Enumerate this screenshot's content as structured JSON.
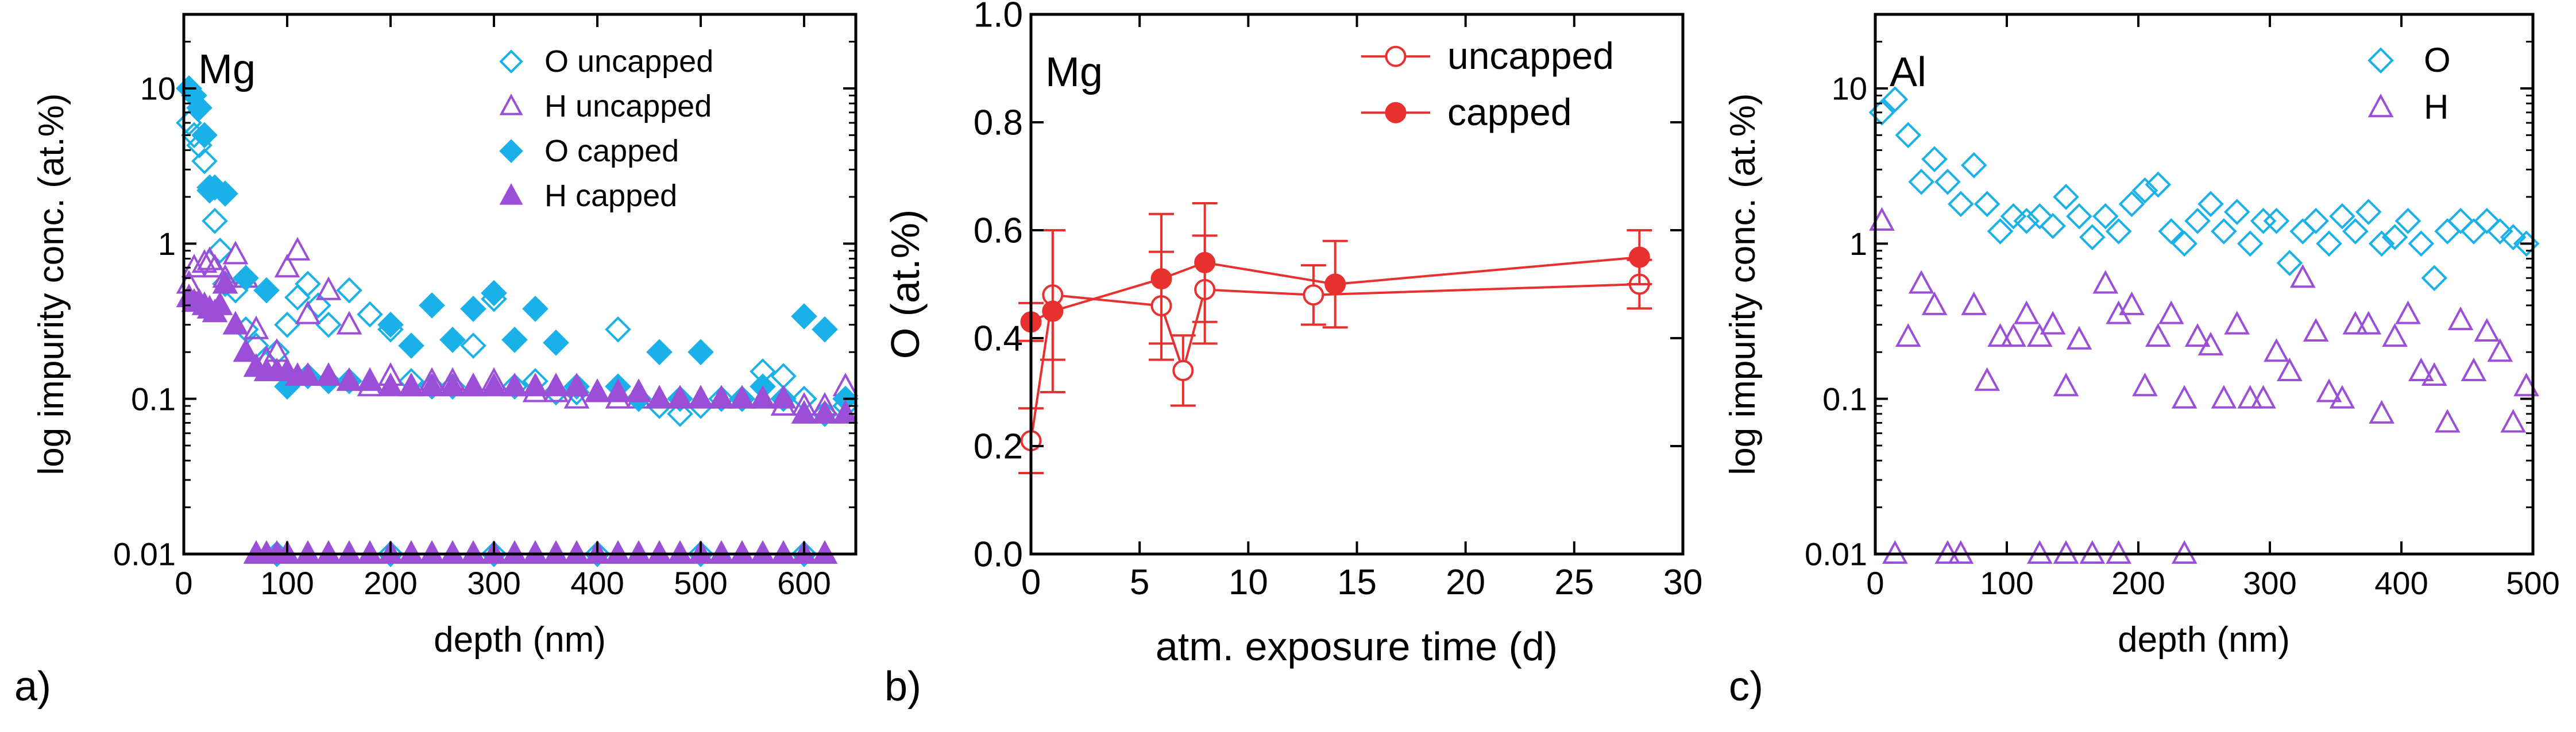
{
  "panel_labels": [
    "a)",
    "b)",
    "c)"
  ],
  "colors": {
    "oxygen": "#1AB0E8",
    "hydrogen": "#9B4FD6",
    "capped_line": "#E8302E",
    "axis": "#000000"
  },
  "chart_data": [
    {
      "type": "scatter",
      "panel": "a)",
      "annotation": "Mg",
      "xlabel": "depth (nm)",
      "ylabel": "log impurity conc. (at.%)",
      "xscale": "linear",
      "yscale": "log",
      "xlim": [
        0,
        650
      ],
      "ylim": [
        0.01,
        30
      ],
      "xticks": [
        "0",
        "100",
        "200",
        "300",
        "400",
        "500",
        "600"
      ],
      "xtick_values": [
        0,
        100,
        200,
        300,
        400,
        500,
        600
      ],
      "yticks": [
        "0.01",
        "0.1",
        "1",
        "10"
      ],
      "ytick_values": [
        0.01,
        0.1,
        1,
        10
      ],
      "legend_position": "top-right",
      "series": [
        {
          "name": "O uncapped",
          "marker": "diamond",
          "filled": false,
          "color": "#1AB0E8",
          "x": [
            5,
            10,
            15,
            20,
            25,
            30,
            35,
            40,
            50,
            60,
            70,
            80,
            90,
            100,
            110,
            120,
            130,
            140,
            160,
            180,
            200,
            220,
            240,
            260,
            280,
            300,
            320,
            340,
            360,
            380,
            420,
            440,
            460,
            480,
            500,
            520,
            540,
            560,
            580,
            600,
            620,
            640,
            90,
            200,
            300,
            400,
            500,
            600
          ],
          "y": [
            6,
            5,
            4.3,
            3.4,
            2.3,
            1.4,
            0.9,
            0.55,
            0.5,
            0.28,
            0.22,
            0.17,
            0.2,
            0.3,
            0.45,
            0.55,
            0.4,
            0.3,
            0.5,
            0.35,
            0.28,
            0.13,
            0.12,
            0.12,
            0.22,
            0.44,
            0.12,
            0.13,
            0.11,
            0.11,
            0.28,
            0.1,
            0.09,
            0.08,
            0.09,
            0.1,
            0.1,
            0.15,
            0.14,
            0.1,
            0.08,
            0.09,
            0.01,
            0.01,
            0.01,
            0.01,
            0.01,
            0.01
          ]
        },
        {
          "name": "H uncapped",
          "marker": "triangle",
          "filled": false,
          "color": "#9B4FD6",
          "x": [
            5,
            10,
            20,
            25,
            30,
            40,
            50,
            60,
            70,
            80,
            90,
            100,
            110,
            120,
            140,
            160,
            180,
            200,
            220,
            240,
            260,
            280,
            300,
            320,
            340,
            360,
            380,
            400,
            420,
            440,
            460,
            480,
            500,
            520,
            540,
            560,
            580,
            600,
            620,
            640
          ],
          "y": [
            0.55,
            0.7,
            0.75,
            0.78,
            0.7,
            0.6,
            0.85,
            0.6,
            0.28,
            0.18,
            0.2,
            0.7,
            0.9,
            0.35,
            0.5,
            0.3,
            0.12,
            0.14,
            0.12,
            0.13,
            0.13,
            0.12,
            0.13,
            0.12,
            0.11,
            0.11,
            0.1,
            0.11,
            0.1,
            0.1,
            0.1,
            0.1,
            0.1,
            0.1,
            0.1,
            0.1,
            0.09,
            0.09,
            0.09,
            0.12
          ]
        },
        {
          "name": "O capped",
          "marker": "diamond",
          "filled": true,
          "color": "#1AB0E8",
          "x": [
            5,
            10,
            15,
            20,
            25,
            30,
            40,
            60,
            80,
            100,
            120,
            140,
            160,
            200,
            220,
            240,
            260,
            280,
            300,
            320,
            340,
            360,
            380,
            420,
            440,
            460,
            480,
            500,
            540,
            560,
            580,
            600,
            620,
            640
          ],
          "y": [
            10,
            9,
            7.5,
            5,
            2.2,
            2.3,
            2.1,
            0.6,
            0.5,
            0.12,
            0.14,
            0.13,
            0.13,
            0.3,
            0.22,
            0.4,
            0.24,
            0.38,
            0.48,
            0.24,
            0.38,
            0.23,
            0.12,
            0.12,
            0.1,
            0.2,
            0.1,
            0.2,
            0.1,
            0.12,
            0.1,
            0.34,
            0.28,
            0.1
          ]
        },
        {
          "name": "H capped",
          "marker": "triangle",
          "filled": true,
          "color": "#9B4FD6",
          "x": [
            5,
            10,
            15,
            20,
            25,
            30,
            35,
            40,
            50,
            60,
            70,
            80,
            90,
            100,
            110,
            120,
            140,
            160,
            180,
            200,
            220,
            240,
            260,
            280,
            300,
            320,
            340,
            360,
            380,
            400,
            420,
            440,
            460,
            480,
            500,
            520,
            540,
            560,
            580,
            600,
            620,
            640,
            70,
            80,
            90,
            100,
            120,
            140,
            160,
            180,
            200,
            220,
            240,
            260,
            280,
            300,
            320,
            340,
            360,
            380,
            400,
            420,
            440,
            460,
            480,
            500,
            520,
            540,
            560,
            580,
            600,
            620
          ],
          "y": [
            0.45,
            0.42,
            0.42,
            0.4,
            0.38,
            0.36,
            0.4,
            0.55,
            0.3,
            0.2,
            0.16,
            0.15,
            0.15,
            0.15,
            0.14,
            0.14,
            0.14,
            0.13,
            0.13,
            0.12,
            0.12,
            0.12,
            0.12,
            0.12,
            0.12,
            0.12,
            0.12,
            0.12,
            0.12,
            0.11,
            0.11,
            0.11,
            0.1,
            0.1,
            0.1,
            0.1,
            0.1,
            0.1,
            0.1,
            0.08,
            0.08,
            0.08,
            0.01,
            0.01,
            0.01,
            0.01,
            0.01,
            0.01,
            0.01,
            0.01,
            0.01,
            0.01,
            0.01,
            0.01,
            0.01,
            0.01,
            0.01,
            0.01,
            0.01,
            0.01,
            0.01,
            0.01,
            0.01,
            0.01,
            0.01,
            0.01,
            0.01,
            0.01,
            0.01,
            0.01,
            0.01,
            0.01
          ]
        }
      ]
    },
    {
      "type": "line",
      "panel": "b)",
      "annotation": "Mg",
      "xlabel": "atm. exposure time (d)",
      "ylabel": "O (at.%)",
      "xlim": [
        0,
        30
      ],
      "ylim": [
        0.0,
        1.0
      ],
      "xticks": [
        "0",
        "5",
        "10",
        "15",
        "20",
        "25",
        "30"
      ],
      "xtick_values": [
        0,
        5,
        10,
        15,
        20,
        25,
        30
      ],
      "yticks": [
        "0.0",
        "0.2",
        "0.4",
        "0.6",
        "0.8",
        "1.0"
      ],
      "ytick_values": [
        0,
        0.2,
        0.4,
        0.6,
        0.8,
        1.0
      ],
      "legend_position": "top-right",
      "series": [
        {
          "name": "uncapped",
          "marker": "circle",
          "filled": false,
          "color": "#E8302E",
          "x": [
            0,
            1,
            6,
            7,
            8,
            13,
            28
          ],
          "y": [
            0.21,
            0.48,
            0.46,
            0.34,
            0.49,
            0.48,
            0.5
          ],
          "err": [
            0.06,
            0.12,
            0.1,
            0.065,
            0.1,
            0.055,
            0.045
          ]
        },
        {
          "name": "capped",
          "marker": "circle",
          "filled": true,
          "color": "#E8302E",
          "x": [
            0,
            1,
            6,
            8,
            14,
            28
          ],
          "y": [
            0.43,
            0.45,
            0.51,
            0.54,
            0.5,
            0.55
          ],
          "err": [
            0.035,
            0.15,
            0.12,
            0.11,
            0.08,
            0.05
          ]
        }
      ]
    },
    {
      "type": "scatter",
      "panel": "c)",
      "annotation": "Al",
      "xlabel": "depth (nm)",
      "ylabel": "log impurity conc. (at.%)",
      "xscale": "linear",
      "yscale": "log",
      "xlim": [
        0,
        500
      ],
      "ylim": [
        0.01,
        30
      ],
      "xticks": [
        "0",
        "100",
        "200",
        "300",
        "400",
        "500"
      ],
      "xtick_values": [
        0,
        100,
        200,
        300,
        400,
        500
      ],
      "yticks": [
        "0.01",
        "0.1",
        "1",
        "10"
      ],
      "ytick_values": [
        0.01,
        0.1,
        1,
        10
      ],
      "legend_position": "top-right",
      "series": [
        {
          "name": "O",
          "marker": "diamond",
          "filled": false,
          "color": "#1AB0E8",
          "x": [
            5,
            15,
            25,
            35,
            45,
            55,
            65,
            75,
            85,
            95,
            105,
            115,
            125,
            135,
            145,
            155,
            165,
            175,
            185,
            195,
            205,
            215,
            225,
            235,
            245,
            255,
            265,
            275,
            285,
            295,
            305,
            315,
            325,
            335,
            345,
            355,
            365,
            375,
            385,
            395,
            405,
            415,
            425,
            435,
            445,
            455,
            465,
            475,
            485,
            495
          ],
          "y": [
            7,
            8.5,
            5,
            2.5,
            3.5,
            2.5,
            1.8,
            3.2,
            1.8,
            1.2,
            1.5,
            1.4,
            1.5,
            1.3,
            2,
            1.5,
            1.1,
            1.5,
            1.2,
            1.8,
            2.2,
            2.4,
            1.2,
            1,
            1.4,
            1.8,
            1.2,
            1.6,
            1,
            1.4,
            1.4,
            0.75,
            1.2,
            1.4,
            1,
            1.5,
            1.2,
            1.6,
            1,
            1.1,
            1.4,
            1,
            0.6,
            1.2,
            1.4,
            1.2,
            1.4,
            1.2,
            1.1,
            1
          ]
        },
        {
          "name": "H",
          "marker": "triangle",
          "filled": false,
          "color": "#9B4FD6",
          "x": [
            5,
            25,
            35,
            45,
            75,
            85,
            95,
            105,
            115,
            125,
            135,
            145,
            155,
            175,
            185,
            195,
            205,
            215,
            225,
            235,
            245,
            255,
            265,
            275,
            285,
            295,
            305,
            315,
            325,
            335,
            345,
            355,
            365,
            375,
            385,
            395,
            405,
            415,
            425,
            435,
            445,
            455,
            465,
            475,
            485,
            495,
            15,
            55,
            65,
            125,
            145,
            165,
            185,
            235
          ],
          "y": [
            1.4,
            0.25,
            0.55,
            0.4,
            0.4,
            0.13,
            0.25,
            0.25,
            0.35,
            0.25,
            0.3,
            0.12,
            0.24,
            0.55,
            0.35,
            0.4,
            0.12,
            0.25,
            0.35,
            0.1,
            0.25,
            0.22,
            0.1,
            0.3,
            0.1,
            0.1,
            0.2,
            0.15,
            0.6,
            0.27,
            0.11,
            0.1,
            0.3,
            0.3,
            0.08,
            0.25,
            0.35,
            0.15,
            0.14,
            0.07,
            0.32,
            0.15,
            0.27,
            0.2,
            0.07,
            0.12,
            0.01,
            0.01,
            0.01,
            0.01,
            0.01,
            0.01,
            0.01,
            0.01
          ]
        }
      ]
    }
  ]
}
